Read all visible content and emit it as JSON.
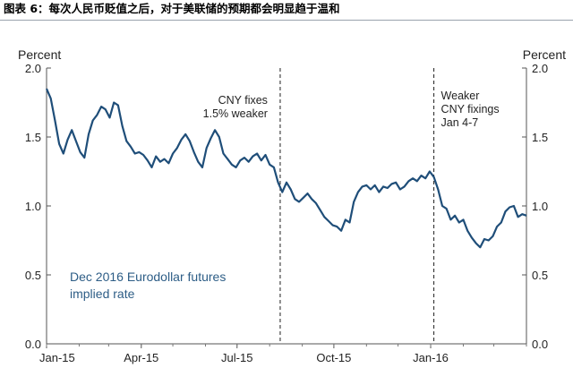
{
  "figure_title": "图表 6：每次人民币贬值之后，对于美联储的预期都会明显趋于温和",
  "chart_data": {
    "type": "line",
    "x_tick_labels": [
      "Jan-15",
      "Apr-15",
      "Jul-15",
      "Oct-15",
      "Jan-16"
    ],
    "y_left_unit": "Percent",
    "y_right_unit": "Percent",
    "y_tick_labels": [
      "0.0",
      "0.5",
      "1.0",
      "1.5",
      "2.0"
    ],
    "ylim": [
      0,
      2
    ],
    "grid": false,
    "series": [
      {
        "name": "Dec 2016 Eurodollar futures implied rate",
        "color": "#1f4e79",
        "x": [
          "2015-01-01",
          "2015-01-05",
          "2015-01-09",
          "2015-01-13",
          "2015-01-17",
          "2015-01-21",
          "2015-01-25",
          "2015-01-29",
          "2015-02-02",
          "2015-02-06",
          "2015-02-10",
          "2015-02-14",
          "2015-02-18",
          "2015-02-22",
          "2015-02-26",
          "2015-03-02",
          "2015-03-06",
          "2015-03-10",
          "2015-03-14",
          "2015-03-18",
          "2015-03-22",
          "2015-03-26",
          "2015-03-30",
          "2015-04-03",
          "2015-04-07",
          "2015-04-11",
          "2015-04-15",
          "2015-04-19",
          "2015-04-23",
          "2015-04-27",
          "2015-05-01",
          "2015-05-05",
          "2015-05-09",
          "2015-05-13",
          "2015-05-17",
          "2015-05-21",
          "2015-05-25",
          "2015-05-29",
          "2015-06-02",
          "2015-06-06",
          "2015-06-10",
          "2015-06-14",
          "2015-06-18",
          "2015-06-22",
          "2015-06-26",
          "2015-06-30",
          "2015-07-04",
          "2015-07-08",
          "2015-07-12",
          "2015-07-16",
          "2015-07-20",
          "2015-07-24",
          "2015-07-28",
          "2015-08-01",
          "2015-08-05",
          "2015-08-09",
          "2015-08-13",
          "2015-08-17",
          "2015-08-21",
          "2015-08-25",
          "2015-08-29",
          "2015-09-02",
          "2015-09-06",
          "2015-09-10",
          "2015-09-14",
          "2015-09-18",
          "2015-09-22",
          "2015-09-26",
          "2015-09-30",
          "2015-10-04",
          "2015-10-08",
          "2015-10-12",
          "2015-10-16",
          "2015-10-20",
          "2015-10-24",
          "2015-10-28",
          "2015-11-01",
          "2015-11-05",
          "2015-11-09",
          "2015-11-13",
          "2015-11-17",
          "2015-11-21",
          "2015-11-25",
          "2015-11-29",
          "2015-12-03",
          "2015-12-07",
          "2015-12-11",
          "2015-12-15",
          "2015-12-19",
          "2015-12-23",
          "2015-12-27",
          "2015-12-31",
          "2016-01-04",
          "2016-01-08",
          "2016-01-12",
          "2016-01-16",
          "2016-01-20",
          "2016-01-24",
          "2016-01-28",
          "2016-02-01",
          "2016-02-05",
          "2016-02-09",
          "2016-02-13",
          "2016-02-17",
          "2016-02-21",
          "2016-02-25",
          "2016-02-29",
          "2016-03-04",
          "2016-03-08",
          "2016-03-12",
          "2016-03-16",
          "2016-03-20",
          "2016-03-24",
          "2016-03-28",
          "2016-04-01"
        ],
        "y": [
          1.85,
          1.78,
          1.62,
          1.45,
          1.38,
          1.48,
          1.55,
          1.47,
          1.39,
          1.35,
          1.52,
          1.62,
          1.66,
          1.72,
          1.7,
          1.64,
          1.75,
          1.73,
          1.58,
          1.47,
          1.43,
          1.38,
          1.39,
          1.37,
          1.33,
          1.28,
          1.36,
          1.32,
          1.34,
          1.31,
          1.38,
          1.42,
          1.48,
          1.52,
          1.47,
          1.39,
          1.32,
          1.28,
          1.42,
          1.49,
          1.55,
          1.5,
          1.38,
          1.34,
          1.3,
          1.28,
          1.33,
          1.35,
          1.32,
          1.36,
          1.38,
          1.33,
          1.37,
          1.3,
          1.28,
          1.17,
          1.1,
          1.17,
          1.12,
          1.05,
          1.03,
          1.06,
          1.09,
          1.05,
          1.02,
          0.97,
          0.92,
          0.89,
          0.86,
          0.85,
          0.82,
          0.9,
          0.88,
          1.03,
          1.1,
          1.14,
          1.15,
          1.12,
          1.15,
          1.1,
          1.14,
          1.13,
          1.16,
          1.17,
          1.12,
          1.14,
          1.18,
          1.2,
          1.18,
          1.22,
          1.2,
          1.25,
          1.21,
          1.12,
          1.0,
          0.98,
          0.9,
          0.93,
          0.88,
          0.9,
          0.82,
          0.77,
          0.73,
          0.7,
          0.76,
          0.75,
          0.78,
          0.85,
          0.88,
          0.96,
          0.99,
          1.0,
          0.92,
          0.94,
          0.93
        ]
      }
    ],
    "markers": [
      {
        "x": "2015-08-11",
        "label_lines": [
          "CNY fixes",
          "1.5% weaker"
        ],
        "style": "dashed"
      },
      {
        "x": "2016-01-04",
        "label_lines": [
          "Weaker",
          "CNY fixings",
          "Jan 4-7"
        ],
        "style": "dashed"
      }
    ],
    "series_label_lines": [
      "Dec 2016 Eurodollar futures",
      "implied rate"
    ]
  }
}
